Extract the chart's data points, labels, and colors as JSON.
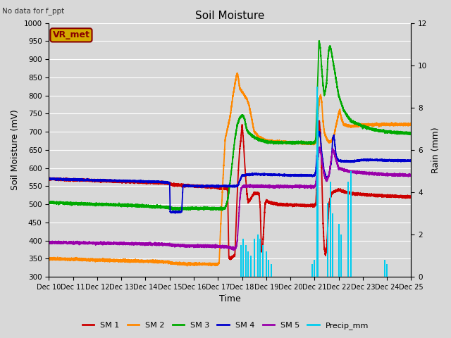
{
  "title": "Soil Moisture",
  "subtitle": "No data for f_ppt",
  "xlabel": "Time",
  "ylabel_left": "Soil Moisture (mV)",
  "ylabel_right": "Rain (mm)",
  "ylim_left": [
    300,
    1000
  ],
  "ylim_right": [
    0,
    12
  ],
  "yticks_left": [
    300,
    350,
    400,
    450,
    500,
    550,
    600,
    650,
    700,
    750,
    800,
    850,
    900,
    950,
    1000
  ],
  "yticks_right": [
    0,
    2,
    4,
    6,
    8,
    10,
    12
  ],
  "bg_color": "#d8d8d8",
  "grid_color": "#ffffff",
  "vr_met_label": "VR_met",
  "vr_met_bg": "#d4aa00",
  "vr_met_edge": "#880000",
  "colors": {
    "SM1": "#cc0000",
    "SM2": "#ff8800",
    "SM3": "#00aa00",
    "SM4": "#0000cc",
    "SM5": "#9900aa",
    "Precip": "#00ccee"
  },
  "legend_entries": [
    "SM 1",
    "SM 2",
    "SM 3",
    "SM 4",
    "SM 5",
    "Precip_mm"
  ],
  "xtick_labels": [
    "Dec 10",
    "Dec 11",
    "Dec 12",
    "Dec 13",
    "Dec 14",
    "Dec 15",
    "Dec 16",
    "Dec 17",
    "Dec 18",
    "Dec 19",
    "Dec 20",
    "Dec 21",
    "Dec 22",
    "Dec 23",
    "Dec 24",
    "Dec 25"
  ],
  "xtick_vals": [
    10,
    11,
    12,
    13,
    14,
    15,
    16,
    17,
    18,
    19,
    20,
    21,
    22,
    23,
    24,
    25
  ]
}
